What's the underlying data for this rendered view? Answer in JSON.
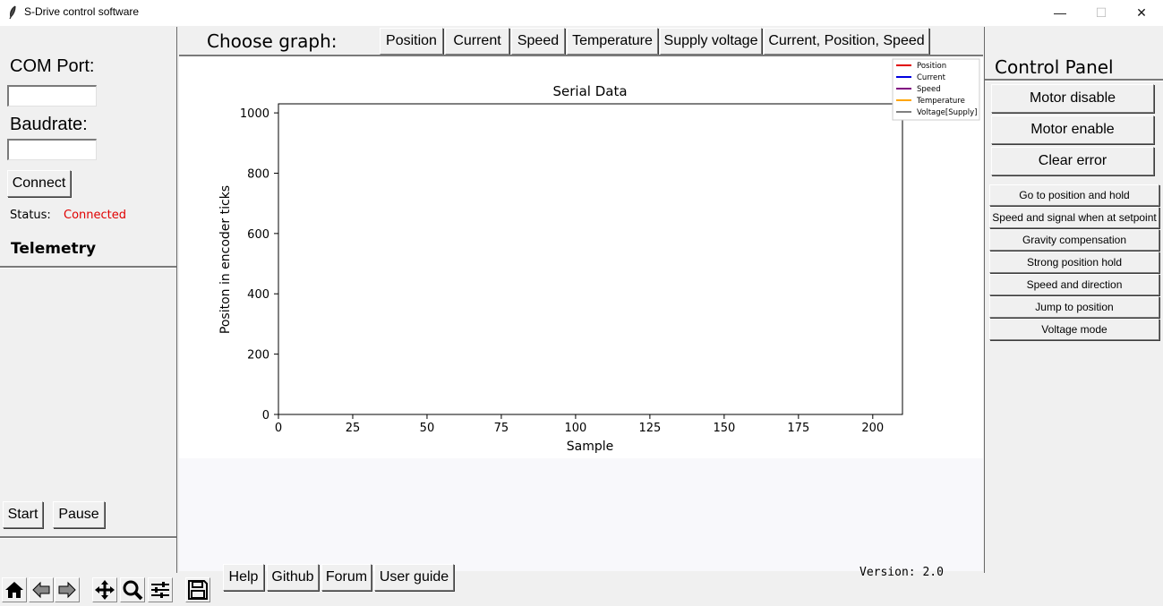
{
  "window": {
    "title": "S-Drive control software",
    "controls": {
      "minimize": "—",
      "maximize": "☐",
      "close": "✕"
    }
  },
  "left_panel": {
    "com_port_label": "COM Port:",
    "com_port_value": "",
    "baudrate_label": "Baudrate:",
    "baudrate_value": "",
    "connect_label": "Connect",
    "status_label": "Status:",
    "status_value": "Connected",
    "status_color": "#e00000",
    "telemetry_label": "Telemetry",
    "start_label": "Start",
    "pause_label": "Pause"
  },
  "graph_selector": {
    "label": "Choose graph:",
    "buttons": [
      "Position",
      "Current",
      "Speed",
      "Temperature",
      "Supply voltage",
      "Current, Position, Speed"
    ]
  },
  "chart_data": {
    "type": "line",
    "title": "Serial Data",
    "xlabel": "Sample",
    "ylabel": "Positon in encoder ticks",
    "xlim": [
      0,
      210
    ],
    "ylim": [
      0,
      1030
    ],
    "xticks": [
      0,
      25,
      50,
      75,
      100,
      125,
      150,
      175,
      200
    ],
    "yticks": [
      0,
      200,
      400,
      600,
      800,
      1000
    ],
    "grid": false,
    "legend_position": "top-right",
    "series": [
      {
        "name": "Position",
        "color": "#e00000",
        "values": []
      },
      {
        "name": "Current",
        "color": "#0000e0",
        "values": []
      },
      {
        "name": "Speed",
        "color": "#800080",
        "values": []
      },
      {
        "name": "Temperature",
        "color": "#ffa500",
        "values": []
      },
      {
        "name": "Voltage[Supply]",
        "color": "#808080",
        "values": []
      }
    ]
  },
  "control_panel": {
    "title": "Control Panel",
    "main_buttons": [
      "Motor disable",
      "Motor enable",
      "Clear error"
    ],
    "mode_buttons": [
      "Go to position and hold",
      "Speed and signal when at setpoint",
      "Gravity compensation",
      "Strong position hold",
      "Speed and direction",
      "Jump to position",
      "Voltage mode"
    ]
  },
  "bottom": {
    "links": [
      "Help",
      "Github",
      "Forum",
      "User guide"
    ],
    "version": "Version: 2.0",
    "toolbar_icons": [
      "home-icon",
      "back-arrow-icon",
      "forward-arrow-icon",
      "pan-icon",
      "zoom-icon",
      "configure-subplots-icon",
      "save-icon"
    ]
  }
}
